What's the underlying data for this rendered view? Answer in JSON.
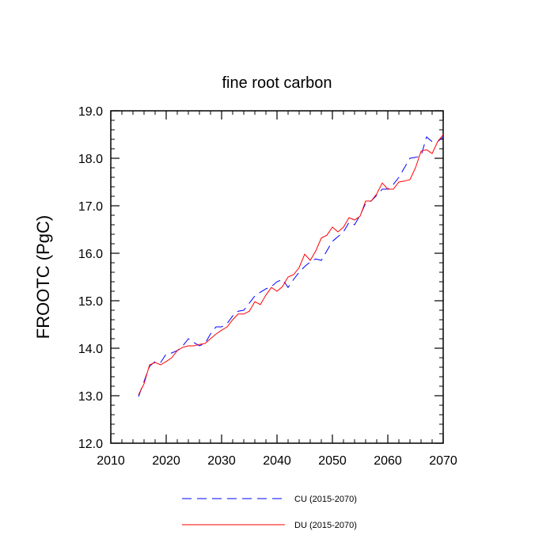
{
  "chart_data": {
    "type": "line",
    "title": "fine root carbon",
    "xlabel": "",
    "ylabel": "FROOTC  (PgC)",
    "xlim": [
      2010,
      2070
    ],
    "ylim": [
      12.0,
      19.0
    ],
    "x_ticks": [
      2010,
      2020,
      2030,
      2040,
      2050,
      2060,
      2070
    ],
    "x_tick_labels": [
      "2010",
      "2020",
      "2030",
      "2040",
      "2050",
      "2060",
      "2070"
    ],
    "y_ticks": [
      12.0,
      13.0,
      14.0,
      15.0,
      16.0,
      17.0,
      18.0,
      19.0
    ],
    "y_tick_labels": [
      "12.0",
      "13.0",
      "14.0",
      "15.0",
      "16.0",
      "17.0",
      "18.0",
      "19.0"
    ],
    "x": [
      2015,
      2016,
      2017,
      2018,
      2019,
      2020,
      2021,
      2022,
      2023,
      2024,
      2025,
      2026,
      2027,
      2028,
      2029,
      2030,
      2031,
      2032,
      2033,
      2034,
      2035,
      2036,
      2037,
      2038,
      2039,
      2040,
      2041,
      2042,
      2043,
      2044,
      2045,
      2046,
      2047,
      2048,
      2049,
      2050,
      2051,
      2052,
      2053,
      2054,
      2055,
      2056,
      2057,
      2058,
      2059,
      2060,
      2061,
      2062,
      2063,
      2064,
      2065,
      2066,
      2067,
      2068,
      2069,
      2070
    ],
    "series": [
      {
        "name": "CU (2015-2070)",
        "color": "#0000ff",
        "style": "dashed",
        "values": [
          12.98,
          13.3,
          13.62,
          13.72,
          13.7,
          13.88,
          13.9,
          13.95,
          14.05,
          14.2,
          14.12,
          14.05,
          14.1,
          14.3,
          14.45,
          14.45,
          14.52,
          14.68,
          14.78,
          14.8,
          14.95,
          15.1,
          15.18,
          15.25,
          15.3,
          15.4,
          15.45,
          15.28,
          15.45,
          15.6,
          15.72,
          15.82,
          15.88,
          15.85,
          16.05,
          16.25,
          16.35,
          16.45,
          16.65,
          16.6,
          16.8,
          17.05,
          17.1,
          17.22,
          17.35,
          17.35,
          17.45,
          17.6,
          17.8,
          18.0,
          18.02,
          18.05,
          18.45,
          18.35,
          18.35,
          18.45
        ]
      },
      {
        "name": "DU (2015-2070)",
        "color": "#ff0000",
        "style": "solid",
        "values": [
          13.02,
          13.25,
          13.65,
          13.7,
          13.65,
          13.72,
          13.8,
          13.95,
          14.02,
          14.05,
          14.05,
          14.08,
          14.1,
          14.2,
          14.3,
          14.38,
          14.45,
          14.6,
          14.72,
          14.72,
          14.78,
          14.98,
          14.92,
          15.12,
          15.28,
          15.2,
          15.3,
          15.5,
          15.55,
          15.7,
          15.98,
          15.85,
          16.05,
          16.32,
          16.38,
          16.55,
          16.45,
          16.55,
          16.75,
          16.7,
          16.78,
          17.1,
          17.1,
          17.25,
          17.48,
          17.35,
          17.35,
          17.5,
          17.52,
          17.55,
          17.8,
          18.15,
          18.18,
          18.1,
          18.35,
          18.5
        ]
      }
    ],
    "legend_position": "bottom"
  }
}
